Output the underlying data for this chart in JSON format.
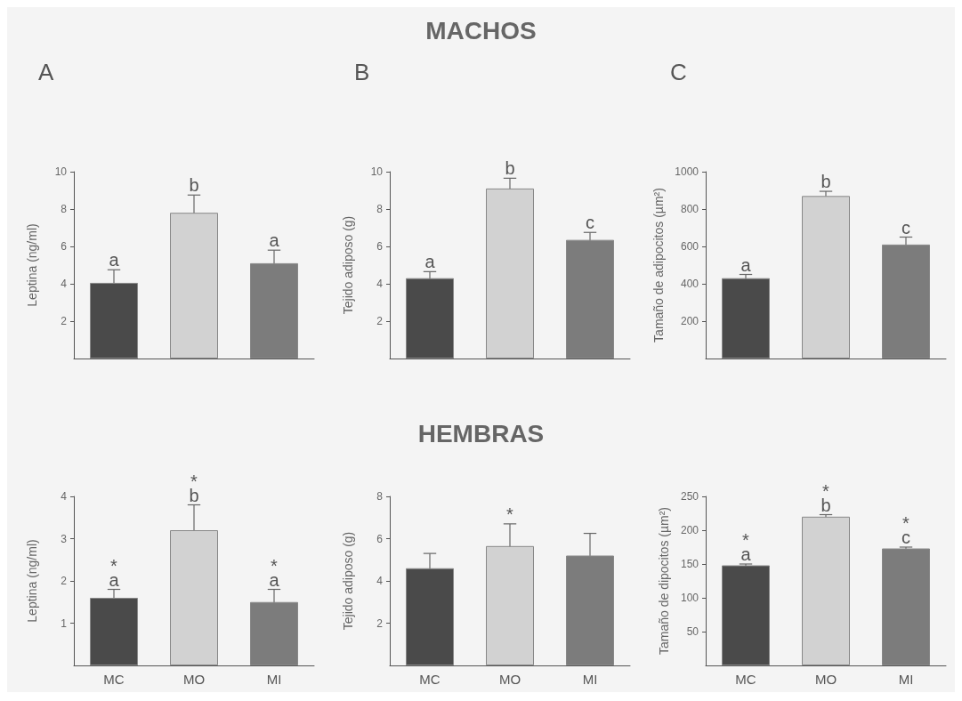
{
  "chart_data": [
    {
      "type": "bar",
      "title": "A",
      "ylabel": "Leptina (ng/ml)",
      "categories": [
        "MC",
        "MO",
        "MI"
      ],
      "values": [
        4.05,
        7.8,
        5.1
      ],
      "errors": [
        0.7,
        0.95,
        0.7
      ],
      "colors": [
        "#4a4a4a",
        "#d2d2d2",
        "#7c7c7c"
      ],
      "ylim": [
        0,
        10
      ],
      "yticks": [
        2,
        4,
        6,
        8,
        10
      ],
      "tick_labels": "y",
      "annotations": [
        {
          "text": "a",
          "x": "MC",
          "y": 4.75
        },
        {
          "text": "b",
          "x": "MO",
          "y": 8.75
        },
        {
          "text": "a",
          "x": "MI",
          "y": 5.8
        }
      ]
    },
    {
      "type": "bar",
      "title": "B",
      "ylabel": "Tejido adiposo (g)",
      "categories": [
        "MC",
        "MO",
        "MI"
      ],
      "values": [
        4.3,
        9.1,
        6.35
      ],
      "errors": [
        0.35,
        0.55,
        0.4
      ],
      "colors": [
        "#4a4a4a",
        "#d2d2d2",
        "#7c7c7c"
      ],
      "ylim": [
        0,
        10
      ],
      "yticks": [
        2,
        4,
        6,
        8,
        10
      ],
      "tick_labels": "y",
      "annotations": [
        "MACHOS",
        {
          "text": "a",
          "x": "MC",
          "y": 4.65
        },
        {
          "text": "b",
          "x": "MO",
          "y": 9.65
        },
        {
          "text": "c",
          "x": "MI",
          "y": 6.75
        }
      ]
    },
    {
      "type": "bar",
      "title": "C",
      "ylabel": "Tamaño de adipocitos (µm²)",
      "categories": [
        "MC",
        "MO",
        "MI"
      ],
      "values": [
        430,
        870,
        610
      ],
      "errors": [
        20,
        25,
        40
      ],
      "colors": [
        "#4a4a4a",
        "#d2d2d2",
        "#7c7c7c"
      ],
      "ylim": [
        0,
        1000
      ],
      "yticks": [
        200,
        400,
        600,
        800,
        1000
      ],
      "tick_labels": "y",
      "annotations": [
        {
          "text": "a",
          "x": "MC",
          "y": 450
        },
        {
          "text": "b",
          "x": "MO",
          "y": 895
        },
        {
          "text": "c",
          "x": "MI",
          "y": 650
        }
      ]
    },
    {
      "type": "bar",
      "ylabel": "Leptina (ng/ml)",
      "categories": [
        "MC",
        "MO",
        "MI"
      ],
      "values": [
        1.6,
        3.2,
        1.5
      ],
      "errors": [
        0.2,
        0.6,
        0.3
      ],
      "colors": [
        "#4a4a4a",
        "#d2d2d2",
        "#7c7c7c"
      ],
      "ylim": [
        0,
        4
      ],
      "yticks": [
        1,
        2,
        3,
        4
      ],
      "annotations": [
        {
          "text": "*\na",
          "x": "MC",
          "y": 1.8
        },
        {
          "text": "*\nb",
          "x": "MO",
          "y": 3.8
        },
        {
          "text": "*\na",
          "x": "MI",
          "y": 1.8
        }
      ]
    },
    {
      "type": "bar",
      "ylabel": "Tejido adiposo (g)",
      "categories": [
        "MC",
        "MO",
        "MI"
      ],
      "values": [
        4.6,
        5.65,
        5.2
      ],
      "errors": [
        0.7,
        1.05,
        1.05
      ],
      "colors": [
        "#4a4a4a",
        "#d2d2d2",
        "#7c7c7c"
      ],
      "ylim": [
        0,
        8
      ],
      "yticks": [
        2,
        4,
        6,
        8
      ],
      "annotations": [
        "HEMBRAS",
        {
          "text": "*",
          "x": "MO",
          "y": 6.7
        }
      ]
    },
    {
      "type": "bar",
      "ylabel": "Tamaño de dipocitos (µm²)",
      "categories": [
        "MC",
        "MO",
        "MI"
      ],
      "values": [
        148,
        220,
        173
      ],
      "errors": [
        2,
        3,
        2
      ],
      "colors": [
        "#4a4a4a",
        "#d2d2d2",
        "#7c7c7c"
      ],
      "ylim": [
        0,
        250
      ],
      "yticks": [
        50,
        100,
        150,
        200,
        250
      ],
      "annotations": [
        {
          "text": "*\na",
          "x": "MC",
          "y": 150
        },
        {
          "text": "*\nb",
          "x": "MO",
          "y": 223
        },
        {
          "text": "*\nc",
          "x": "MI",
          "y": 175
        }
      ]
    }
  ]
}
